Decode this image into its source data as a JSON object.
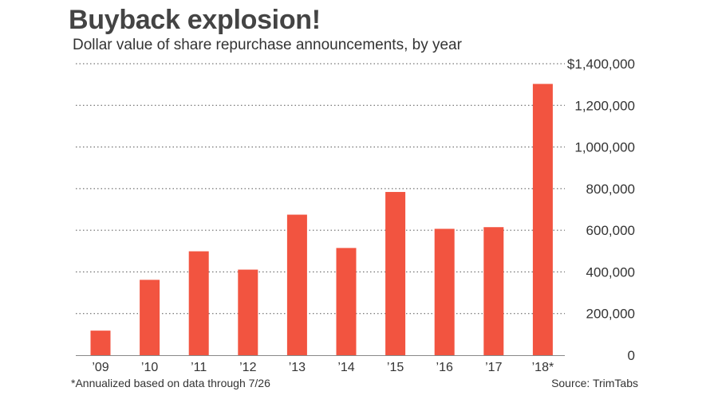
{
  "chart_data": {
    "type": "bar",
    "title": "Buyback explosion!",
    "subtitle": "Dollar value of share repurchase announcements, by year",
    "categories": [
      "’09",
      "’10",
      "’11",
      "’12",
      "’13",
      "’14",
      "’15",
      "’16",
      "’17",
      "’18*"
    ],
    "values": [
      118000,
      362000,
      499000,
      411000,
      675000,
      515000,
      784000,
      607000,
      615000,
      1303000
    ],
    "ylim": [
      0,
      1400000
    ],
    "yticks": [
      0,
      200000,
      400000,
      600000,
      800000,
      1000000,
      1200000,
      1400000
    ],
    "ytick_labels": [
      "0",
      "200,000",
      "400,000",
      "600,000",
      "800,000",
      "1,000,000",
      "1,200,000",
      "$1,400,000"
    ],
    "y_axis_position": "right",
    "grid": true,
    "bar_color": "#f25440",
    "footnote": "*Annualized based on data through 7/26",
    "source": "Source: TrimTabs"
  }
}
